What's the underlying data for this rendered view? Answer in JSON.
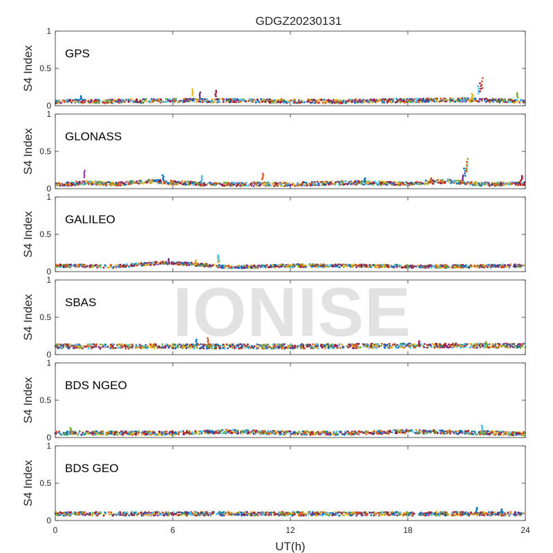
{
  "chart_data": {
    "type": "scatter",
    "title": "GDGZ20230131",
    "xlabel": "UT(h)",
    "ylabel": "S4 Index",
    "xlim": [
      0,
      24
    ],
    "ylim": [
      0,
      1
    ],
    "xticks": [
      0,
      6,
      12,
      18,
      24
    ],
    "yticks": [
      0,
      0.5,
      1
    ],
    "grid": false,
    "colors": [
      "#0072BD",
      "#D95319",
      "#EDB120",
      "#7E2F8E",
      "#77AC30",
      "#4DBEEE",
      "#A2142F"
    ],
    "panels": [
      {
        "label": "GPS",
        "baseline": [
          [
            0,
            0.06
          ],
          [
            3,
            0.06
          ],
          [
            6,
            0.07
          ],
          [
            9,
            0.07
          ],
          [
            12,
            0.06
          ],
          [
            15,
            0.06
          ],
          [
            18,
            0.07
          ],
          [
            21,
            0.08
          ],
          [
            24,
            0.06
          ]
        ],
        "spread": 0.05,
        "spikes": [
          [
            1.3,
            0.13
          ],
          [
            7.0,
            0.22
          ],
          [
            7.4,
            0.18
          ],
          [
            8.2,
            0.2
          ],
          [
            21.3,
            0.16
          ],
          [
            21.6,
            0.26
          ],
          [
            21.7,
            0.3
          ],
          [
            21.8,
            0.37
          ],
          [
            23.6,
            0.17
          ]
        ]
      },
      {
        "label": "GLONASS",
        "baseline": [
          [
            0,
            0.05
          ],
          [
            1.5,
            0.08
          ],
          [
            3,
            0.06
          ],
          [
            5,
            0.1
          ],
          [
            6,
            0.08
          ],
          [
            8,
            0.06
          ],
          [
            12,
            0.06
          ],
          [
            15,
            0.08
          ],
          [
            18,
            0.07
          ],
          [
            20,
            0.1
          ],
          [
            22,
            0.06
          ],
          [
            24,
            0.07
          ]
        ],
        "spread": 0.05,
        "spikes": [
          [
            1.5,
            0.24
          ],
          [
            5.5,
            0.18
          ],
          [
            7.5,
            0.17
          ],
          [
            10.6,
            0.2
          ],
          [
            15.8,
            0.14
          ],
          [
            19.2,
            0.14
          ],
          [
            20.8,
            0.18
          ],
          [
            20.9,
            0.27
          ],
          [
            21.0,
            0.36
          ],
          [
            21.05,
            0.4
          ],
          [
            23.8,
            0.17
          ]
        ]
      },
      {
        "label": "GALILEO",
        "baseline": [
          [
            0,
            0.08
          ],
          [
            3,
            0.07
          ],
          [
            5.5,
            0.12
          ],
          [
            7,
            0.1
          ],
          [
            9,
            0.06
          ],
          [
            12,
            0.08
          ],
          [
            15,
            0.08
          ],
          [
            18,
            0.07
          ],
          [
            21,
            0.07
          ],
          [
            24,
            0.08
          ]
        ],
        "spread": 0.04,
        "spikes": [
          [
            5.8,
            0.17
          ],
          [
            7.2,
            0.15
          ],
          [
            8.3,
            0.2
          ],
          [
            8.35,
            0.22
          ]
        ]
      },
      {
        "label": "SBAS",
        "baseline": [
          [
            0,
            0.11
          ],
          [
            6,
            0.11
          ],
          [
            12,
            0.11
          ],
          [
            18,
            0.12
          ],
          [
            24,
            0.12
          ]
        ],
        "spread": 0.06,
        "spikes": [
          [
            7.2,
            0.2
          ],
          [
            7.8,
            0.22
          ],
          [
            18.6,
            0.18
          ],
          [
            22,
            0.17
          ]
        ]
      },
      {
        "label": "BDS NGEO",
        "baseline": [
          [
            0,
            0.06
          ],
          [
            3,
            0.06
          ],
          [
            6,
            0.06
          ],
          [
            9,
            0.08
          ],
          [
            12,
            0.06
          ],
          [
            15,
            0.06
          ],
          [
            18,
            0.08
          ],
          [
            21,
            0.07
          ],
          [
            24,
            0.05
          ]
        ],
        "spread": 0.05,
        "spikes": [
          [
            0.8,
            0.13
          ],
          [
            21.8,
            0.16
          ]
        ]
      },
      {
        "label": "BDS GEO",
        "baseline": [
          [
            0,
            0.09
          ],
          [
            6,
            0.09
          ],
          [
            12,
            0.09
          ],
          [
            18,
            0.09
          ],
          [
            24,
            0.09
          ]
        ],
        "spread": 0.05,
        "spikes": [
          [
            21.5,
            0.17
          ],
          [
            22.8,
            0.15
          ]
        ]
      }
    ]
  },
  "watermark": "IONISE"
}
